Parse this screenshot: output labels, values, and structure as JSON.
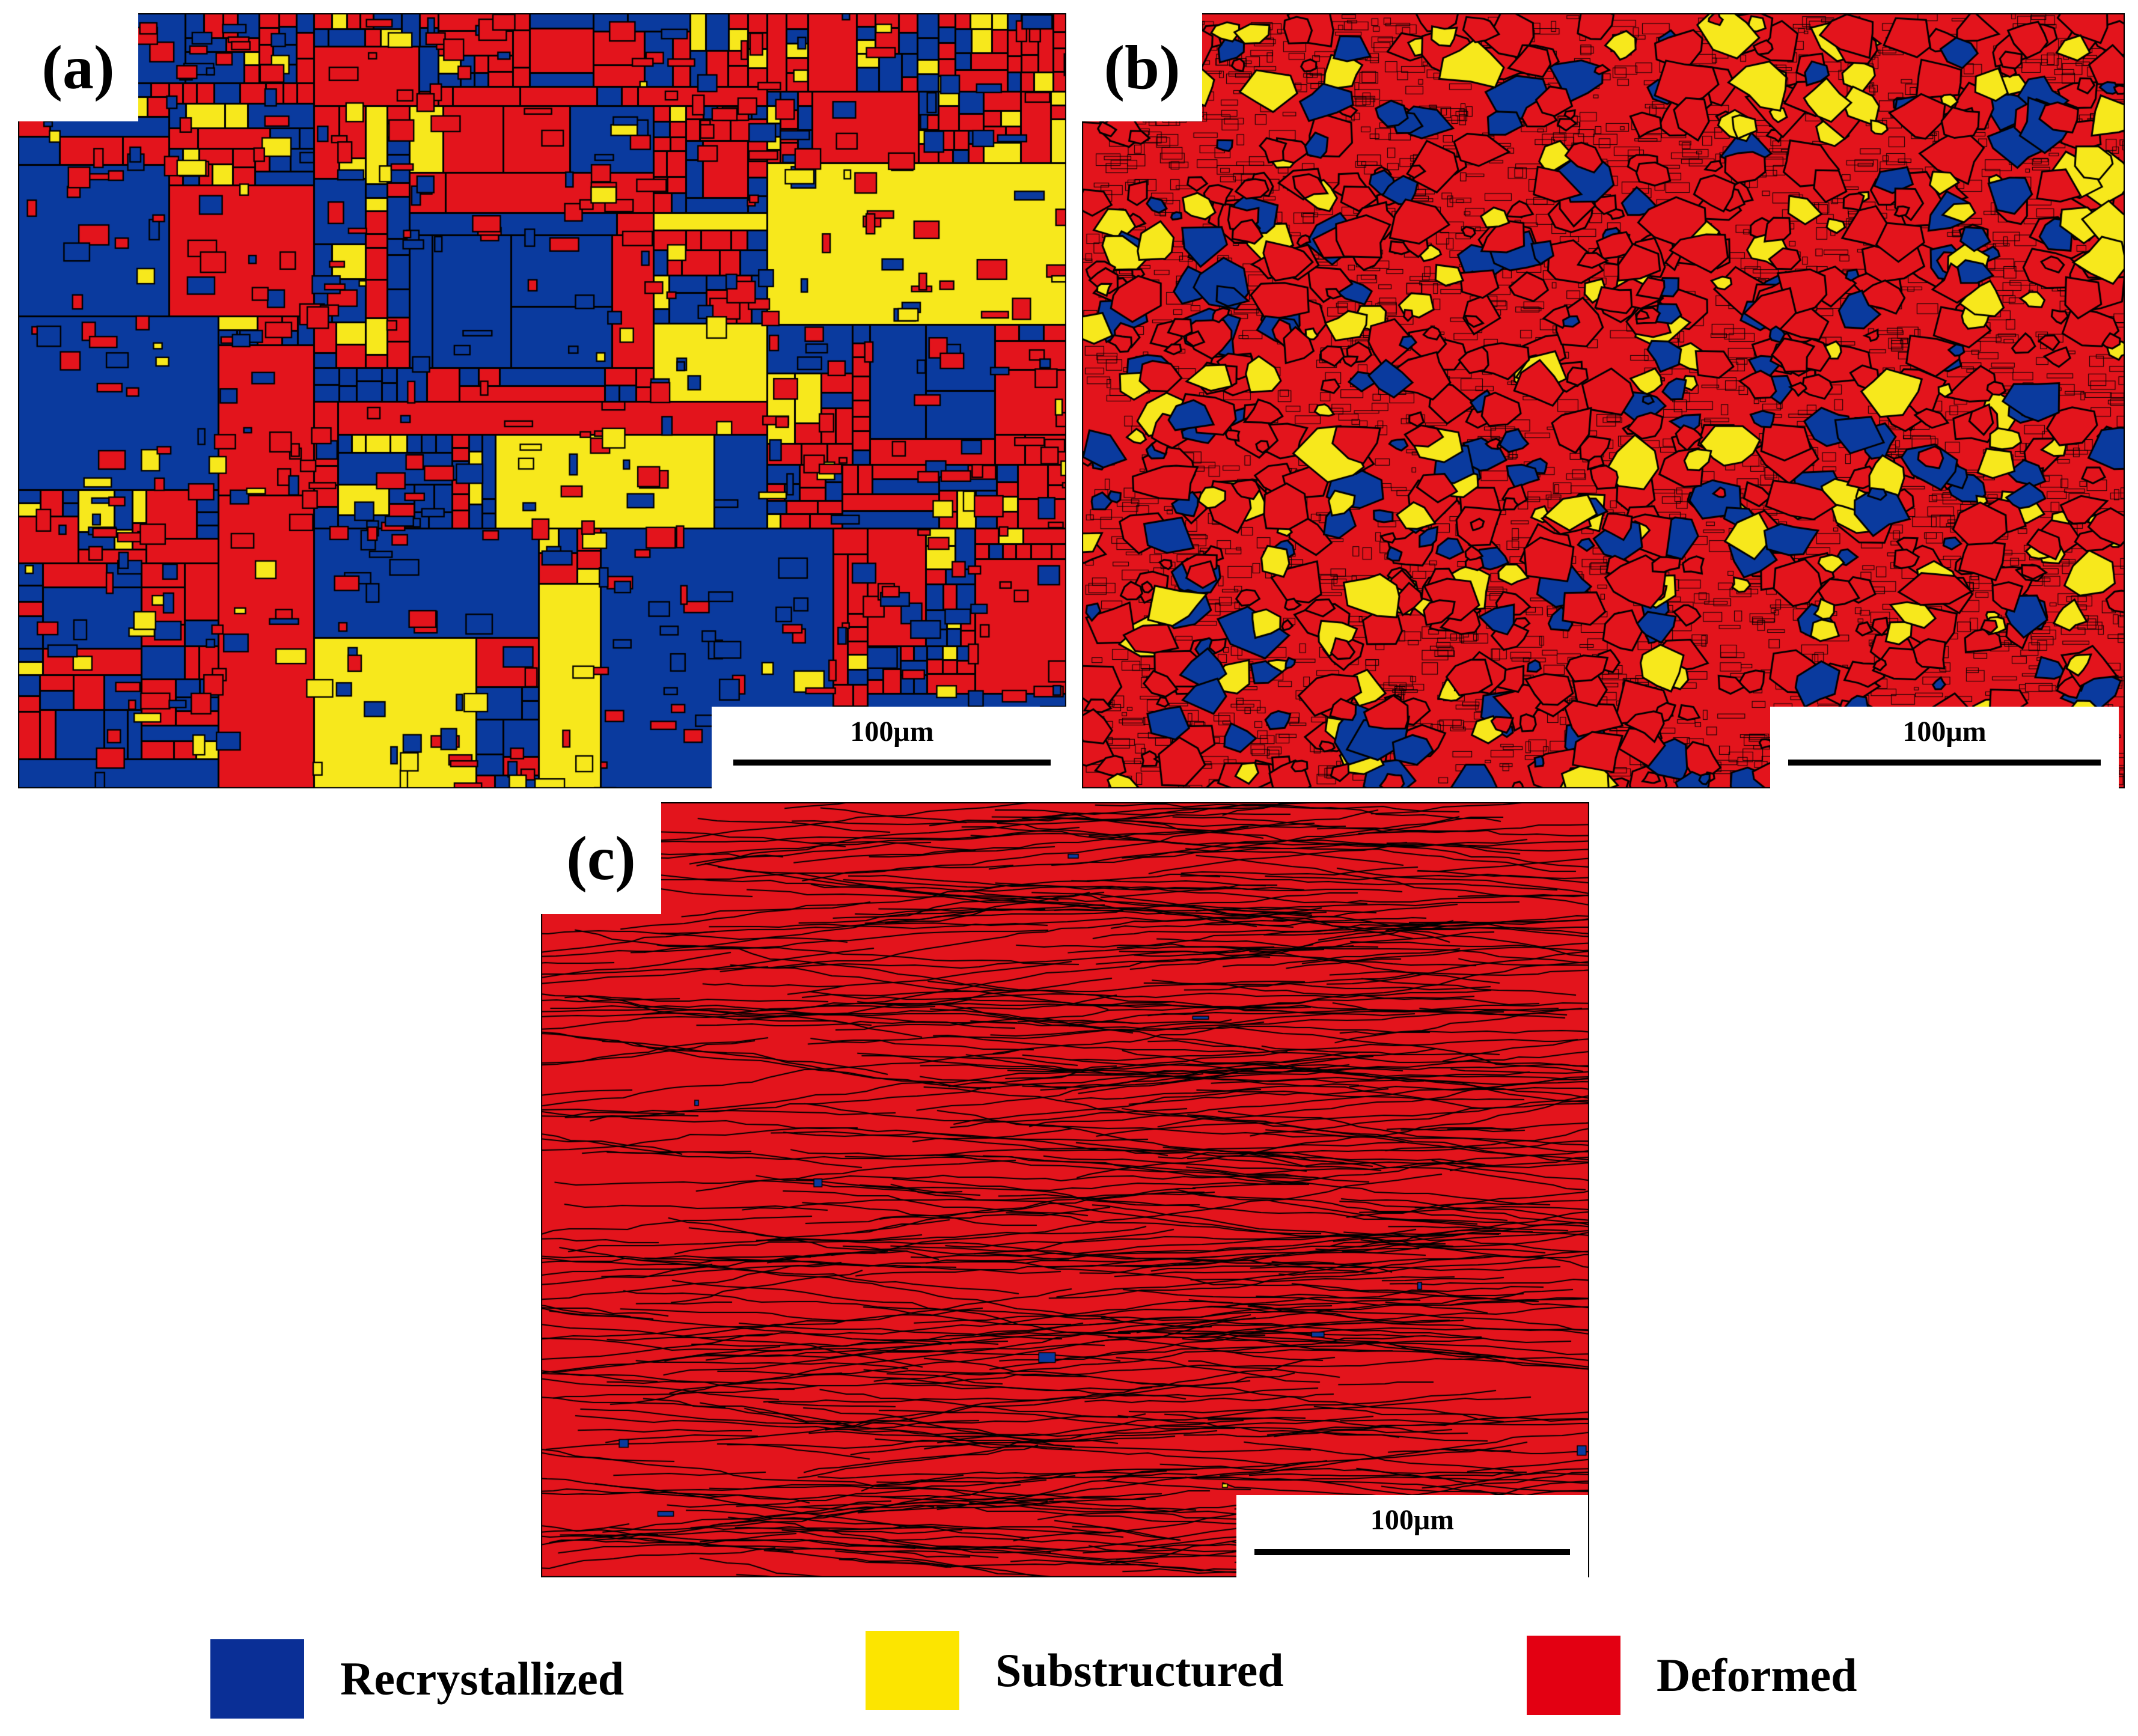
{
  "colors": {
    "recrystallized": "#0a3a9e",
    "substructured": "#f7e81c",
    "deformed": "#e3141c",
    "boundary": "#000000",
    "legend_recrystallized": "#0a2f96",
    "legend_substructured": "#fce500",
    "legend_deformed": "#e30012"
  },
  "panels": [
    {
      "id": "a",
      "label": "(a)",
      "scale_label": "100μm",
      "composition": {
        "deformed": 0.52,
        "recrystallized": 0.38,
        "substructured": 0.1
      }
    },
    {
      "id": "b",
      "label": "(b)",
      "scale_label": "100μm",
      "composition": {
        "deformed": 0.62,
        "recrystallized": 0.2,
        "substructured": 0.18
      }
    },
    {
      "id": "c",
      "label": "(c)",
      "scale_label": "100μm",
      "composition": {
        "deformed": 0.975,
        "recrystallized": 0.022,
        "substructured": 0.003
      }
    }
  ],
  "legend": [
    {
      "key": "recrystallized",
      "label": "Recrystallized"
    },
    {
      "key": "substructured",
      "label": "Substructured"
    },
    {
      "key": "deformed",
      "label": "Deformed"
    }
  ]
}
